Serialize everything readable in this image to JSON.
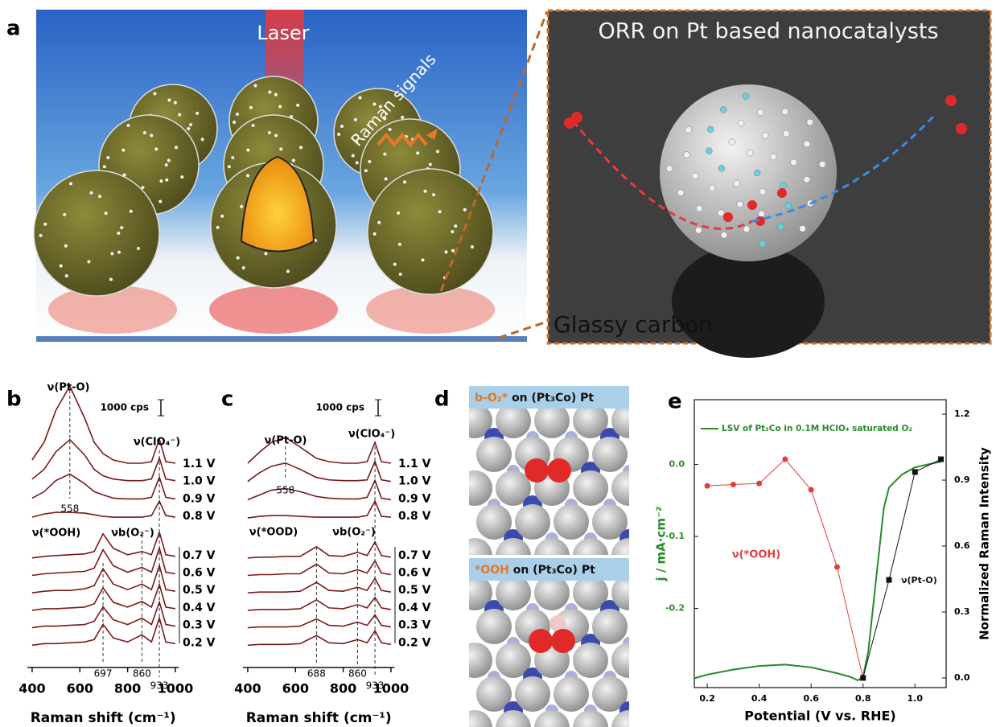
{
  "figure": {
    "panel_a": {
      "letter": "a",
      "laser": "Laser",
      "raman": "Raman signals",
      "inset_title": "ORR on Pt based nanocatalysts",
      "substrate": "Glassy carbon"
    },
    "panel_d": {
      "letter": "d",
      "top_species": "b-O₂*",
      "top_surface": "on  (Pt₃Co) Pt",
      "bottom_species": "*OOH",
      "bottom_surface": "on (Pt₃Co) Pt"
    }
  },
  "chart_data": [
    {
      "type": "spectra",
      "panel": "b",
      "x_label": "Raman shift (cm⁻¹)",
      "xlim": [
        380,
        1015
      ],
      "xticks": [
        400,
        600,
        800,
        1000
      ],
      "scale_bar": {
        "value": 1000,
        "label": "1000 cps"
      },
      "annotations": [
        "ν(Pt-O)",
        "ν(ClO₄⁻)",
        "ν(*OOH)",
        "νb(O₂⁻)"
      ],
      "markers": [
        558,
        697,
        860,
        933
      ],
      "x": [
        400,
        450,
        500,
        558,
        620,
        660,
        697,
        740,
        800,
        860,
        900,
        933,
        960,
        1000
      ],
      "series": [
        {
          "name": "1.1 V",
          "color": "#7a1a1a",
          "values": [
            400,
            1500,
            3500,
            5000,
            3000,
            1500,
            800,
            400,
            200,
            200,
            300,
            1700,
            300,
            200
          ]
        },
        {
          "name": "1.0 V",
          "color": "#7a1a1a",
          "values": [
            300,
            900,
            2000,
            2750,
            1800,
            900,
            500,
            300,
            200,
            200,
            300,
            1600,
            300,
            200
          ]
        },
        {
          "name": "0.9 V",
          "color": "#7a1a1a",
          "values": [
            200,
            600,
            1300,
            1700,
            1100,
            600,
            400,
            200,
            150,
            150,
            250,
            1500,
            250,
            150
          ]
        },
        {
          "name": "0.8 V",
          "color": "#7a1a1a",
          "values": [
            100,
            300,
            400,
            400,
            350,
            250,
            150,
            100,
            100,
            100,
            200,
            1100,
            200,
            100
          ]
        },
        {
          "name": "0.7 V",
          "color": "#7a1a1a",
          "values": [
            0,
            100,
            150,
            200,
            250,
            400,
            1500,
            600,
            200,
            400,
            200,
            1600,
            200,
            100
          ]
        },
        {
          "name": "0.6 V",
          "color": "#7a1a1a",
          "values": [
            0,
            100,
            150,
            200,
            250,
            450,
            1600,
            600,
            200,
            500,
            200,
            1700,
            200,
            100
          ]
        },
        {
          "name": "0.5 V",
          "color": "#7a1a1a",
          "values": [
            0,
            100,
            150,
            150,
            250,
            450,
            1500,
            550,
            200,
            550,
            200,
            1700,
            200,
            100
          ]
        },
        {
          "name": "0.4 V",
          "color": "#7a1a1a",
          "values": [
            0,
            100,
            100,
            150,
            200,
            400,
            1400,
            500,
            200,
            550,
            200,
            1600,
            200,
            100
          ]
        },
        {
          "name": "0.3 V",
          "color": "#7a1a1a",
          "values": [
            0,
            100,
            100,
            150,
            200,
            400,
            1300,
            500,
            200,
            600,
            200,
            1600,
            200,
            100
          ]
        },
        {
          "name": "0.2 V",
          "color": "#7a1a1a",
          "values": [
            0,
            100,
            100,
            150,
            200,
            350,
            1300,
            450,
            200,
            650,
            200,
            1700,
            200,
            100
          ]
        }
      ]
    },
    {
      "type": "spectra",
      "panel": "c",
      "x_label": "Raman shift (cm⁻¹)",
      "xlim": [
        380,
        1015
      ],
      "xticks": [
        400,
        600,
        800,
        1000
      ],
      "scale_bar": {
        "value": 1000,
        "label": "1000 cps"
      },
      "annotations": [
        "ν(Pt-O)",
        "ν(ClO₄⁻)",
        "ν(*OOD)",
        "νb(O₂⁻)"
      ],
      "markers": [
        558,
        688,
        860,
        933
      ],
      "x": [
        400,
        450,
        500,
        558,
        620,
        688,
        740,
        800,
        860,
        900,
        933,
        960,
        1000
      ],
      "series": [
        {
          "name": "1.1 V",
          "color": "#7a1a1a",
          "values": [
            200,
            900,
            1500,
            1800,
            1200,
            500,
            300,
            200,
            200,
            300,
            1500,
            300,
            200
          ]
        },
        {
          "name": "1.0 V",
          "color": "#7a1a1a",
          "values": [
            150,
            700,
            1100,
            1300,
            900,
            400,
            250,
            200,
            200,
            250,
            1400,
            250,
            150
          ]
        },
        {
          "name": "0.9 V",
          "color": "#7a1a1a",
          "values": [
            100,
            400,
            700,
            800,
            600,
            300,
            200,
            150,
            150,
            250,
            1300,
            200,
            100
          ]
        },
        {
          "name": "0.8 V",
          "color": "#7a1a1a",
          "values": [
            50,
            150,
            200,
            200,
            150,
            100,
            100,
            100,
            100,
            200,
            1100,
            150,
            100
          ]
        },
        {
          "name": "0.7 V",
          "color": "#7a1a1a",
          "values": [
            0,
            50,
            50,
            100,
            100,
            700,
            150,
            100,
            350,
            150,
            1000,
            150,
            50
          ]
        },
        {
          "name": "0.6 V",
          "color": "#7a1a1a",
          "values": [
            0,
            50,
            50,
            100,
            100,
            700,
            150,
            100,
            350,
            150,
            900,
            150,
            50
          ]
        },
        {
          "name": "0.5 V",
          "color": "#7a1a1a",
          "values": [
            0,
            50,
            50,
            50,
            100,
            650,
            150,
            100,
            350,
            150,
            900,
            150,
            50
          ]
        },
        {
          "name": "0.4 V",
          "color": "#7a1a1a",
          "values": [
            0,
            50,
            50,
            50,
            100,
            650,
            150,
            100,
            350,
            150,
            800,
            150,
            50
          ]
        },
        {
          "name": "0.3 V",
          "color": "#7a1a1a",
          "values": [
            0,
            50,
            50,
            50,
            100,
            550,
            150,
            100,
            350,
            150,
            800,
            150,
            50
          ]
        },
        {
          "name": "0.2 V",
          "color": "#7a1a1a",
          "values": [
            0,
            50,
            50,
            50,
            100,
            600,
            150,
            100,
            350,
            150,
            900,
            150,
            50
          ]
        }
      ]
    },
    {
      "type": "dual",
      "panel": "e",
      "x_label": "Potential (V vs. RHE)",
      "y_label": "j / mA·cm⁻²",
      "y2_label": "Normalized Raman Intensity",
      "xlim": [
        0.15,
        1.12
      ],
      "xticks": [
        0.2,
        0.4,
        0.6,
        0.8,
        {
          "value": 1,
          "label": "1.0"
        }
      ],
      "ylim": [
        -0.31,
        0.09
      ],
      "yticks": [
        -0.2,
        -0.1,
        {
          "value": 0,
          "label": "0.0"
        }
      ],
      "y2lim": [
        -0.044,
        1.266
      ],
      "y2ticks": [
        {
          "value": 0,
          "label": "0.0"
        },
        0.3,
        0.6,
        0.9,
        1.2
      ],
      "series": [
        {
          "name": "LSV of Pt₃Co in 0.1M HClO₄ saturated O₂",
          "color": "#2a8a2a",
          "x": [
            0.15,
            0.2,
            0.3,
            0.4,
            0.5,
            0.6,
            0.7,
            0.75,
            0.78,
            0.8,
            0.82,
            0.85,
            0.88,
            0.9,
            0.95,
            1,
            1.05,
            1.1
          ],
          "values": [
            -0.297,
            -0.292,
            -0.285,
            -0.28,
            -0.278,
            -0.282,
            -0.29,
            -0.295,
            -0.3,
            -0.295,
            -0.26,
            -0.16,
            -0.06,
            -0.032,
            -0.014,
            -0.004,
            0,
            0.004
          ]
        },
        {
          "name": "ν(*OOH)",
          "color": "#e0403a",
          "axis": "y2",
          "x": [
            0.2,
            0.3,
            0.4,
            0.5,
            0.6,
            0.7,
            0.8
          ],
          "values": [
            0.874,
            0.88,
            0.885,
            0.995,
            0.856,
            0.505,
            0
          ]
        },
        {
          "name": "ν(Pt-O)",
          "color": "#111111",
          "axis": "y2",
          "x": [
            0.8,
            0.9,
            1,
            1.1
          ],
          "values": [
            0,
            0.446,
            0.937,
            0.995
          ]
        }
      ]
    }
  ]
}
